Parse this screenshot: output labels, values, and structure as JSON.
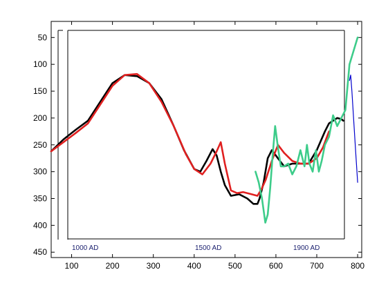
{
  "chart_data": {
    "type": "line",
    "title": "",
    "xlabel": "",
    "ylabel": "",
    "xlim": [
      50,
      810
    ],
    "ylim": [
      20,
      460
    ],
    "y_reversed": true,
    "grid": false,
    "x_ticks": [
      100,
      200,
      300,
      400,
      500,
      600,
      700,
      800
    ],
    "y_ticks": [
      50,
      100,
      150,
      200,
      250,
      300,
      350,
      400,
      450
    ],
    "annotations": [
      "1000 AD",
      "1500 AD",
      "1900 AD"
    ],
    "series": [
      {
        "color": "#000000",
        "x": [
          50,
          80,
          110,
          140,
          170,
          200,
          230,
          260,
          290,
          320,
          350,
          375,
          400,
          415,
          430,
          445,
          455,
          465,
          475,
          490,
          510,
          530,
          545,
          555,
          560,
          570,
          580,
          590,
          600,
          610,
          620,
          640,
          660,
          680,
          700,
          720,
          730,
          740,
          750,
          760,
          765
        ],
        "y": [
          262,
          240,
          222,
          205,
          170,
          135,
          120,
          122,
          135,
          165,
          215,
          260,
          295,
          300,
          280,
          258,
          270,
          300,
          325,
          345,
          342,
          350,
          360,
          360,
          350,
          320,
          275,
          260,
          270,
          280,
          290,
          285,
          285,
          285,
          260,
          225,
          210,
          205,
          200,
          202,
          205
        ]
      },
      {
        "color": "#e02020",
        "x": [
          50,
          80,
          110,
          140,
          170,
          200,
          230,
          260,
          290,
          320,
          350,
          380,
          400,
          420,
          440,
          455,
          465,
          475,
          490,
          505,
          520,
          540,
          555,
          565,
          575,
          590,
          605,
          620,
          640,
          660,
          680,
          700,
          715,
          730
        ],
        "y": [
          262,
          245,
          228,
          210,
          175,
          140,
          120,
          118,
          135,
          170,
          215,
          268,
          295,
          305,
          285,
          262,
          245,
          285,
          335,
          340,
          338,
          342,
          345,
          332,
          315,
          280,
          250,
          265,
          280,
          285,
          285,
          275,
          255,
          225
        ]
      },
      {
        "color": "#3dcc8a",
        "x": [
          550,
          558,
          566,
          574,
          580,
          586,
          592,
          598,
          605,
          612,
          620,
          630,
          640,
          650,
          660,
          665,
          670,
          676,
          682,
          690,
          698,
          705,
          712,
          720,
          730,
          740,
          750,
          760,
          770,
          780,
          790,
          800
        ],
        "y": [
          300,
          320,
          350,
          395,
          380,
          330,
          270,
          215,
          255,
          290,
          290,
          285,
          305,
          290,
          260,
          275,
          290,
          250,
          285,
          300,
          260,
          300,
          280,
          250,
          235,
          195,
          215,
          200,
          185,
          100,
          75,
          50
        ]
      },
      {
        "color": "#0000cc",
        "x": [
          780,
          783,
          786,
          790,
          795,
          800
        ],
        "y": [
          130,
          120,
          150,
          200,
          260,
          320
        ]
      }
    ]
  }
}
